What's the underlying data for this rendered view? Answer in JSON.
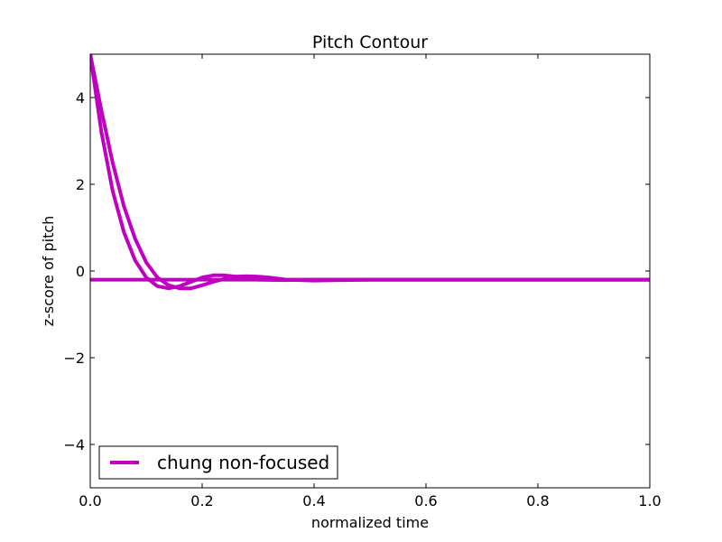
{
  "chart_data": {
    "type": "line",
    "title": "Pitch Contour",
    "xlabel": "normalized time",
    "ylabel": "z-score of pitch",
    "xlim": [
      0.0,
      1.0
    ],
    "ylim": [
      -5,
      5
    ],
    "x_ticks": [
      0.0,
      0.2,
      0.4,
      0.6,
      0.8,
      1.0
    ],
    "x_tick_labels": [
      "0.0",
      "0.2",
      "0.4",
      "0.6",
      "0.8",
      "1.0"
    ],
    "y_ticks": [
      -4,
      -2,
      0,
      2,
      4
    ],
    "y_tick_labels": [
      "−4",
      "−2",
      "0",
      "2",
      "4"
    ],
    "grid": false,
    "legend": {
      "placement": "lower-left",
      "entries": [
        "chung non-focused"
      ]
    },
    "color": "#bf00bf",
    "series": [
      {
        "name": "chung non-focused",
        "x": [
          0.0,
          0.02,
          0.04,
          0.06,
          0.08,
          0.1,
          0.12,
          0.14,
          0.16,
          0.18,
          0.2,
          0.22,
          0.24,
          0.26,
          0.28,
          0.3,
          0.35,
          0.4,
          0.5,
          0.6,
          0.7,
          0.8,
          0.9,
          1.0
        ],
        "values": [
          5.0,
          3.2,
          1.85,
          0.9,
          0.25,
          -0.15,
          -0.35,
          -0.4,
          -0.35,
          -0.25,
          -0.15,
          -0.1,
          -0.1,
          -0.13,
          -0.17,
          -0.2,
          -0.21,
          -0.2,
          -0.2,
          -0.2,
          -0.2,
          -0.2,
          -0.2,
          -0.2
        ]
      },
      {
        "name": "",
        "x": [
          0.0,
          0.02,
          0.04,
          0.06,
          0.08,
          0.1,
          0.12,
          0.14,
          0.16,
          0.18,
          0.2,
          0.22,
          0.24,
          0.26,
          0.28,
          0.3,
          0.32,
          0.35,
          0.4,
          0.5,
          0.6,
          0.7,
          0.8,
          0.9,
          1.0
        ],
        "values": [
          5.0,
          3.7,
          2.5,
          1.5,
          0.75,
          0.2,
          -0.15,
          -0.33,
          -0.4,
          -0.4,
          -0.33,
          -0.25,
          -0.18,
          -0.13,
          -0.12,
          -0.13,
          -0.15,
          -0.2,
          -0.22,
          -0.2,
          -0.2,
          -0.2,
          -0.2,
          -0.2,
          -0.2
        ]
      },
      {
        "name": "",
        "x": [
          0.0,
          1.0
        ],
        "values": [
          -0.2,
          -0.2
        ]
      }
    ]
  }
}
